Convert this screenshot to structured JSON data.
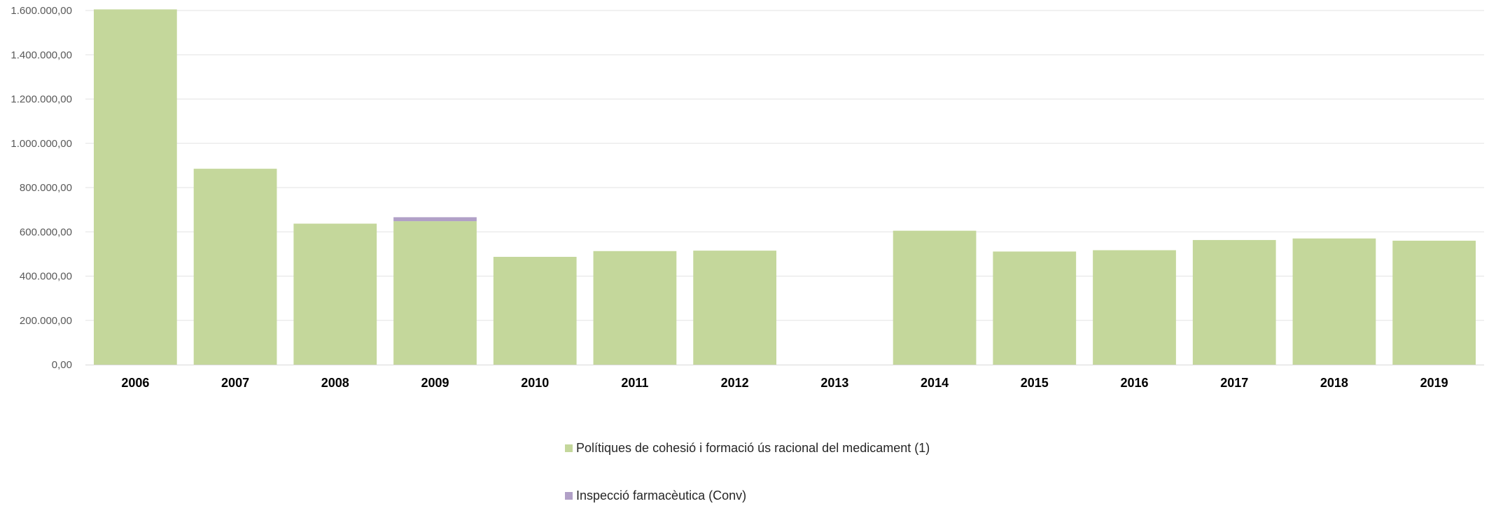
{
  "chart_data": {
    "type": "bar",
    "stacked": true,
    "categories": [
      "2006",
      "2007",
      "2008",
      "2009",
      "2010",
      "2011",
      "2012",
      "2013",
      "2014",
      "2015",
      "2016",
      "2017",
      "2018",
      "2019"
    ],
    "series": [
      {
        "name": "Polítiques de cohesió i formació ús racional del medicament (1)",
        "color": "#c4d79b",
        "values": [
          1605000,
          885000,
          637000,
          648000,
          487000,
          513000,
          515000,
          0,
          605000,
          511000,
          517000,
          563000,
          570000,
          560000
        ]
      },
      {
        "name": "Inspecció farmacèutica (Conv)",
        "color": "#b1a0c7",
        "values": [
          0,
          0,
          0,
          18000,
          0,
          0,
          0,
          0,
          0,
          0,
          0,
          0,
          0,
          0
        ]
      }
    ],
    "ylim": [
      0,
      1600000
    ],
    "yticks": [
      0,
      200000,
      400000,
      600000,
      800000,
      1000000,
      1200000,
      1400000,
      1600000
    ],
    "ytick_labels": [
      "0,00",
      "200.000,00",
      "400.000,00",
      "600.000,00",
      "800.000,00",
      "1.000.000,00",
      "1.200.000,00",
      "1.400.000,00",
      "1.600.000,00"
    ],
    "grid": true,
    "legend_position": "bottom"
  }
}
